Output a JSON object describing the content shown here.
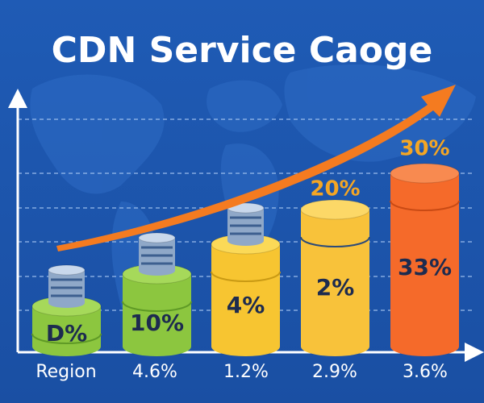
{
  "title": "CDN Service Caoge",
  "axis_labels": [
    "Region",
    "4.6%",
    "1.2%",
    "2.9%",
    "3.6%"
  ],
  "columns": [
    {
      "label": "D%"
    },
    {
      "label": "10%"
    },
    {
      "label": "4%"
    },
    {
      "label": "2%",
      "top_label": "20%"
    },
    {
      "label": "33%",
      "top_label": "30%"
    }
  ]
}
